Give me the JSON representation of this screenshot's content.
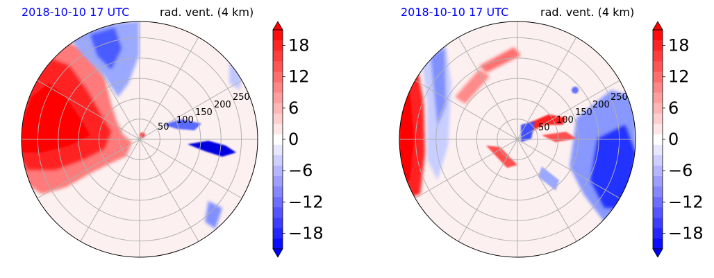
{
  "chart_data": [
    {
      "type": "heatmap",
      "projection": "polar",
      "title_left": "2018-10-10 17 UTC",
      "title_right": "rad. vent. (4 km)",
      "radial_ticks": [
        50,
        100,
        150,
        200,
        250
      ],
      "rmax": 290,
      "angular_grid_deg": 30,
      "colorbar": {
        "ticks": [
          "18",
          "12",
          "6",
          "0",
          "−6",
          "−12",
          "−18"
        ],
        "values": [
          18,
          12,
          6,
          0,
          -6,
          -12,
          -18
        ],
        "vmin": -21,
        "vmax": 21,
        "extend": "both",
        "colormap": "bwr"
      },
      "colors": {
        "title_left": "#0000ff",
        "positive": "#ff0000",
        "negative": "#0000ff",
        "grid": "#b0b0b0"
      }
    },
    {
      "type": "heatmap",
      "projection": "polar",
      "title_left": "2018-10-10 17 UTC",
      "title_right": "rad. vent. (4 km)",
      "radial_ticks": [
        50,
        100,
        150,
        200,
        250
      ],
      "rmax": 290,
      "angular_grid_deg": 30,
      "colorbar": {
        "ticks": [
          "18",
          "12",
          "6",
          "0",
          "−6",
          "−12",
          "−18"
        ],
        "values": [
          18,
          12,
          6,
          0,
          -6,
          -12,
          -18
        ],
        "vmin": -21,
        "vmax": 21,
        "extend": "both",
        "colormap": "bwr"
      },
      "colors": {
        "title_left": "#0000ff",
        "positive": "#ff0000",
        "negative": "#0000ff",
        "grid": "#b0b0b0"
      }
    }
  ]
}
